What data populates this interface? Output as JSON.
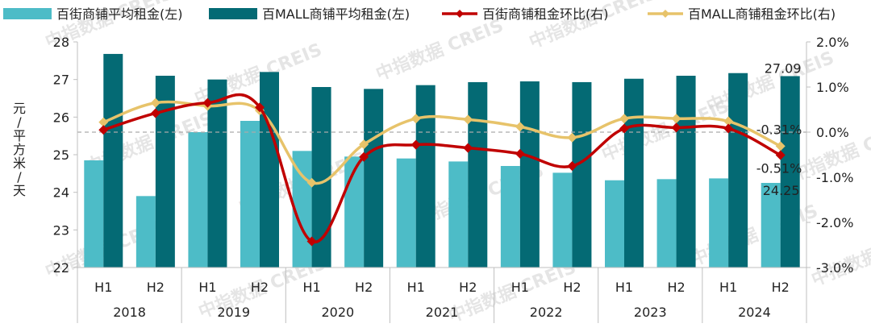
{
  "chart_data": {
    "type": "bar+line",
    "title": "",
    "watermark": "中指数据 CREIS",
    "ylabel_left": "元/平方米/天",
    "ylim_left": [
      22,
      28
    ],
    "yticks_left": [
      "22",
      "23",
      "24",
      "25",
      "26",
      "27",
      "28"
    ],
    "ylim_right": [
      -3.0,
      2.0
    ],
    "yticks_right": [
      "-3.0%",
      "-2.0%",
      "-1.0%",
      "0.0%",
      "1.0%",
      "2.0%"
    ],
    "years": [
      "2018",
      "2019",
      "2020",
      "2021",
      "2022",
      "2023",
      "2024"
    ],
    "categories": [
      "H1",
      "H2",
      "H1",
      "H2",
      "H1",
      "H2",
      "H1",
      "H2",
      "H1",
      "H2",
      "H1",
      "H2",
      "H1",
      "H2"
    ],
    "series": [
      {
        "name": "百街商铺平均租金(左)",
        "kind": "bar",
        "axis": "left",
        "color": "#4dbcc7",
        "values": [
          24.85,
          23.9,
          25.6,
          25.9,
          25.1,
          24.95,
          24.9,
          24.82,
          24.7,
          24.52,
          24.32,
          24.35,
          24.37,
          24.25
        ]
      },
      {
        "name": "百MALL商铺平均租金(左)",
        "kind": "bar",
        "axis": "left",
        "color": "#046a74",
        "values": [
          27.68,
          27.1,
          27.0,
          27.2,
          26.8,
          26.75,
          26.85,
          26.93,
          26.95,
          26.93,
          27.02,
          27.1,
          27.17,
          27.09
        ]
      },
      {
        "name": "百街商铺租金环比(右)",
        "kind": "line",
        "axis": "right",
        "color": "#c00000",
        "values": [
          0.05,
          0.42,
          0.65,
          0.55,
          -2.42,
          -0.55,
          -0.28,
          -0.35,
          -0.48,
          -0.75,
          0.08,
          0.1,
          0.08,
          -0.51
        ]
      },
      {
        "name": "百MALL商铺租金环比(右)",
        "kind": "line",
        "axis": "right",
        "color": "#e7c36a",
        "values": [
          0.22,
          0.65,
          0.58,
          0.48,
          -1.12,
          -0.27,
          0.3,
          0.28,
          0.12,
          -0.12,
          0.3,
          0.3,
          0.24,
          -0.31
        ]
      }
    ],
    "data_labels": [
      {
        "series": 1,
        "index": 13,
        "text": "27.09"
      },
      {
        "series": 0,
        "index": 13,
        "text": "24.25"
      },
      {
        "series": 3,
        "index": 13,
        "text": "-0.31%"
      },
      {
        "series": 2,
        "index": 13,
        "text": "-0.51%"
      }
    ],
    "legend_position": "top",
    "grid": false
  }
}
